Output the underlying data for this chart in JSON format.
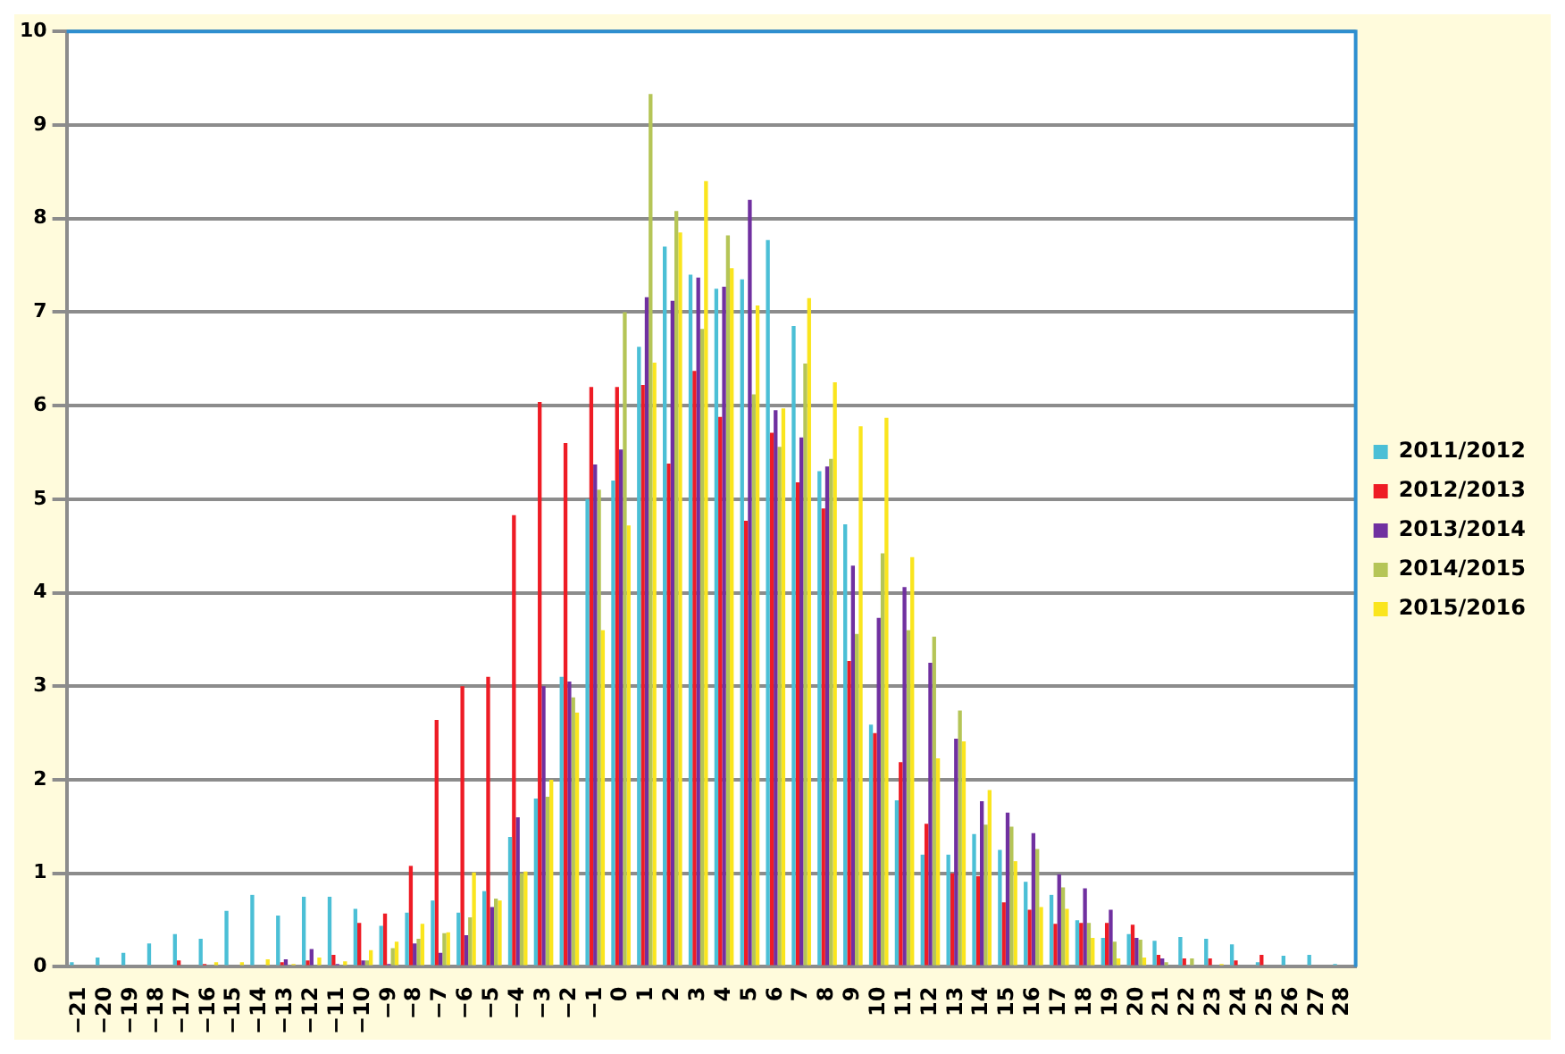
{
  "chart_data": {
    "type": "bar",
    "categories": [
      "−21",
      "−20",
      "−19",
      "−18",
      "−17",
      "−16",
      "−15",
      "−14",
      "−13",
      "−12",
      "−11",
      "−10",
      "−9",
      "−8",
      "−7",
      "−6",
      "−5",
      "−4",
      "−3",
      "−2",
      "−1",
      "0",
      "1",
      "2",
      "3",
      "4",
      "5",
      "6",
      "7",
      "8",
      "9",
      "10",
      "11",
      "12",
      "13",
      "14",
      "15",
      "16",
      "17",
      "18",
      "19",
      "20",
      "21",
      "22",
      "23",
      "24",
      "25",
      "26",
      "27",
      "28"
    ],
    "series": [
      {
        "name": "2011/2012",
        "color": "#4bbfd6",
        "values": [
          0.05,
          0.1,
          0.15,
          0.25,
          0.35,
          0.3,
          0.6,
          0.77,
          0.55,
          0.75,
          0.75,
          0.62,
          0.44,
          0.58,
          0.71,
          0.58,
          0.81,
          1.39,
          1.8,
          3.1,
          5.0,
          5.2,
          6.63,
          7.7,
          7.4,
          7.25,
          7.35,
          7.77,
          6.85,
          5.3,
          4.73,
          2.59,
          1.78,
          1.2,
          1.2,
          1.42,
          1.25,
          0.91,
          0.77,
          0.5,
          0.31,
          0.35,
          0.28,
          0.32,
          0.3,
          0.24,
          0.05,
          0.12,
          0.13,
          0.03
        ]
      },
      {
        "name": "2012/2013",
        "color": "#ee1c25",
        "values": [
          0,
          0,
          0.02,
          0.02,
          0.07,
          0.03,
          0.02,
          0,
          0.05,
          0.07,
          0.13,
          0.47,
          0.57,
          1.08,
          2.64,
          3.0,
          3.1,
          4.83,
          6.04,
          5.6,
          6.2,
          6.2,
          6.22,
          5.38,
          6.37,
          5.88,
          4.77,
          5.71,
          5.18,
          4.9,
          3.27,
          2.5,
          2.19,
          1.53,
          1.0,
          0.97,
          0.69,
          0.61,
          0.46,
          0.47,
          0.47,
          0.45,
          0.13,
          0.09,
          0.09,
          0.07,
          0.13,
          0,
          0,
          0
        ]
      },
      {
        "name": "2013/2014",
        "color": "#7030a0",
        "values": [
          0,
          0,
          0,
          0,
          0,
          0,
          0.02,
          0,
          0.08,
          0.19,
          0.03,
          0.07,
          0.03,
          0.25,
          0.15,
          0.34,
          0.64,
          1.6,
          3.0,
          3.05,
          5.37,
          5.53,
          7.16,
          7.12,
          7.37,
          7.27,
          8.2,
          5.95,
          5.66,
          5.35,
          4.29,
          3.73,
          4.06,
          3.25,
          2.44,
          1.77,
          1.65,
          1.43,
          0.99,
          0.84,
          0.61,
          0.31,
          0.09,
          0,
          0,
          0,
          0,
          0,
          0,
          0
        ]
      },
      {
        "name": "2014/2015",
        "color": "#b5c557",
        "values": [
          0,
          0,
          0,
          0,
          0,
          0,
          0,
          0,
          0,
          0,
          0,
          0.07,
          0.2,
          0.3,
          0.36,
          0.53,
          0.73,
          1.0,
          1.82,
          2.88,
          5.1,
          7.0,
          9.33,
          8.08,
          6.82,
          7.82,
          6.12,
          5.56,
          6.45,
          5.43,
          3.56,
          4.42,
          3.6,
          3.53,
          2.74,
          1.52,
          1.5,
          1.26,
          0.85,
          0.47,
          0.27,
          0.29,
          0.05,
          0.09,
          0.02,
          0,
          0,
          0,
          0,
          0
        ]
      },
      {
        "name": "2015/2016",
        "color": "#fae51e",
        "values": [
          0,
          0,
          0,
          0,
          0,
          0.05,
          0.05,
          0.08,
          0.03,
          0.1,
          0.06,
          0.18,
          0.27,
          0.46,
          0.37,
          1.01,
          0.71,
          1.02,
          2.0,
          2.72,
          3.6,
          4.72,
          6.46,
          7.85,
          8.4,
          7.47,
          7.07,
          5.97,
          7.15,
          6.25,
          5.78,
          5.87,
          4.38,
          2.23,
          2.41,
          1.89,
          1.13,
          0.64,
          0.62,
          0.31,
          0.09,
          0.1,
          0.02,
          0,
          0.03,
          0,
          0,
          0,
          0,
          0
        ]
      }
    ],
    "ylim": [
      0,
      10
    ],
    "yticks": [
      0,
      1,
      2,
      3,
      4,
      5,
      6,
      7,
      8,
      9,
      10
    ],
    "grid": "y",
    "legend": "right"
  }
}
